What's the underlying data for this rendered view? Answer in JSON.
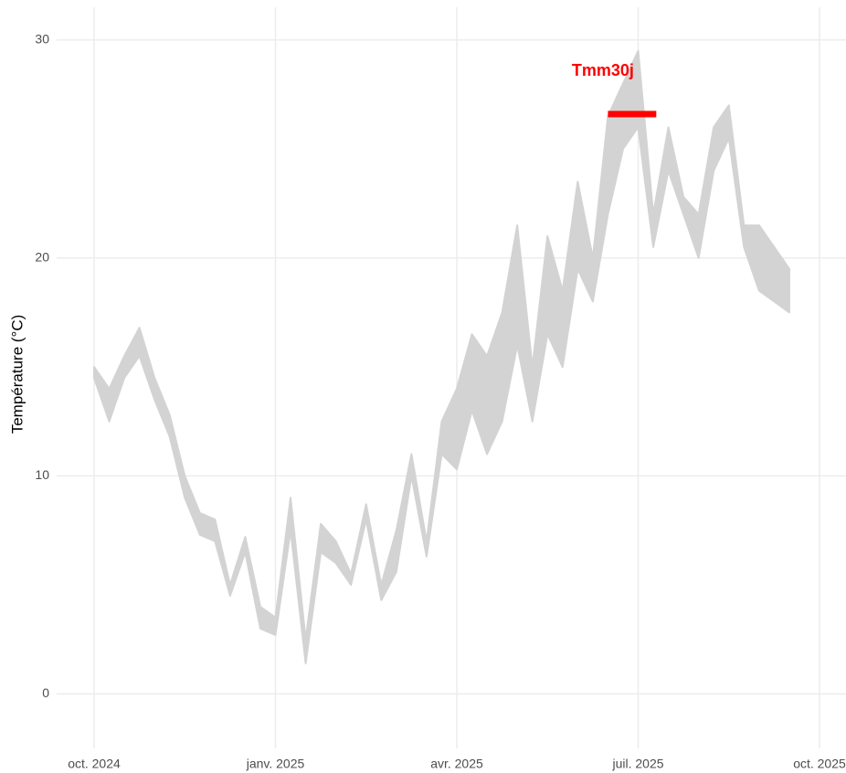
{
  "chart_data": {
    "type": "ribbon",
    "y_label": "Température (°C)",
    "color": "#d3d3d3",
    "x": [
      "2024-10",
      "2024-10",
      "2024-10",
      "2024-10",
      "2024-11",
      "2024-11",
      "2024-11",
      "2024-11",
      "2024-12",
      "2024-12",
      "2024-12",
      "2024-12",
      "2025-01",
      "2025-01",
      "2025-01",
      "2025-01",
      "2025-02",
      "2025-02",
      "2025-02",
      "2025-02",
      "2025-03",
      "2025-03",
      "2025-03",
      "2025-03",
      "2025-04",
      "2025-04",
      "2025-04",
      "2025-04",
      "2025-05",
      "2025-05",
      "2025-05",
      "2025-05",
      "2025-06",
      "2025-06",
      "2025-06",
      "2025-06",
      "2025-07",
      "2025-07",
      "2025-07",
      "2025-07",
      "2025-08",
      "2025-08",
      "2025-08",
      "2025-08",
      "2025-09",
      "2025-09"
    ],
    "ymin": [
      14.5,
      12.5,
      14.5,
      15.5,
      13.5,
      11.8,
      9,
      7.3,
      7,
      4.5,
      6.5,
      3,
      2.7,
      7.5,
      1.4,
      6.5,
      6,
      5,
      8,
      4.3,
      5.6,
      10,
      6.3,
      11,
      10.3,
      13,
      11,
      12.5,
      16,
      12.5,
      16.5,
      15,
      19.5,
      18,
      22,
      25,
      26,
      20.5,
      24,
      22,
      20,
      24,
      25.5,
      20.5,
      18.5,
      17.5
    ],
    "ymax": [
      15,
      14,
      15.5,
      16.8,
      14.5,
      12.8,
      10,
      8.3,
      8,
      5,
      7.2,
      4,
      3.5,
      9,
      2.5,
      7.8,
      7,
      5.5,
      8.7,
      5,
      7.5,
      11,
      7,
      12.5,
      14,
      16.5,
      15.5,
      17.5,
      21.5,
      15,
      21,
      18.5,
      23.5,
      20,
      26.5,
      28,
      29.5,
      22,
      26,
      22.8,
      22,
      26,
      27,
      21.5,
      21.5,
      19.5
    ],
    "xlim": [
      "2024-10",
      "2025-10"
    ],
    "xticks": [
      {
        "value": "2024-10",
        "label": "oct. 2024"
      },
      {
        "value": "2025-01",
        "label": "janv. 2025"
      },
      {
        "value": "2025-04",
        "label": "avr. 2025"
      },
      {
        "value": "2025-07",
        "label": "juil. 2025"
      },
      {
        "value": "2025-10",
        "label": "oct. 2025"
      }
    ],
    "ylim": [
      -2.5,
      31.5
    ],
    "yticks": [
      0,
      10,
      20,
      30
    ],
    "grid": true,
    "segment": {
      "label": "Tmm30j",
      "color": "#ff0000",
      "x": [
        "2025-06",
        "2025-07"
      ],
      "value": 26.6
    }
  }
}
